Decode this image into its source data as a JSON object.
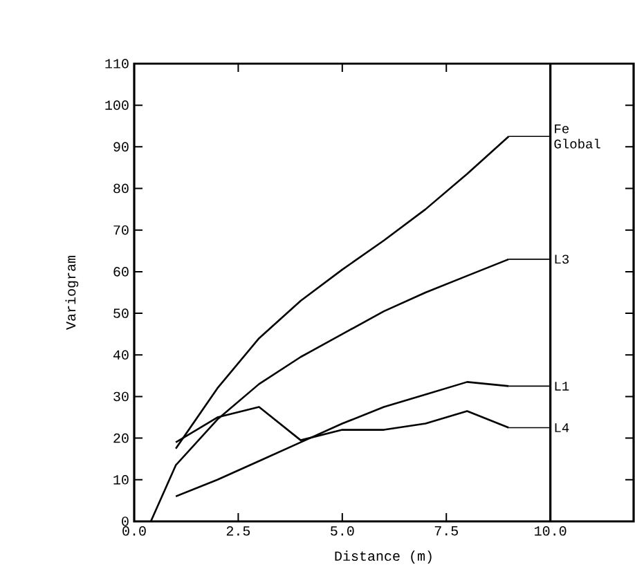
{
  "chart_data": {
    "type": "line",
    "xlabel": "Distance (m)",
    "ylabel": "Variogram",
    "x": [
      1,
      2,
      3,
      4,
      5,
      6,
      7,
      8,
      9
    ],
    "series": [
      {
        "name": "Fe Global",
        "color": "#000000",
        "values": [
          17.5,
          32,
          44,
          53,
          60.5,
          67.5,
          75,
          83.5,
          92.5
        ]
      },
      {
        "name": "L3",
        "color": "#000000",
        "x": [
          0.4,
          1,
          2,
          3,
          4,
          5,
          6,
          7,
          8,
          9
        ],
        "values": [
          0,
          13.5,
          24.5,
          33,
          39.5,
          45,
          50.5,
          55,
          59,
          63
        ]
      },
      {
        "name": "L1",
        "color": "#000000",
        "values": [
          6,
          10,
          14.5,
          19,
          23.5,
          27.5,
          30.5,
          33.5,
          32.5
        ]
      },
      {
        "name": "L4",
        "color": "#000000",
        "values": [
          19,
          25,
          27.5,
          19.5,
          22,
          22,
          23.5,
          26.5,
          22.5
        ]
      }
    ],
    "xlim": [
      0,
      12
    ],
    "ylim": [
      0,
      110
    ],
    "xticks": [
      {
        "value": 0,
        "label": "0.0"
      },
      {
        "value": 2.5,
        "label": "2.5"
      },
      {
        "value": 5,
        "label": "5.0"
      },
      {
        "value": 7.5,
        "label": "7.5"
      },
      {
        "value": 10,
        "label": "10.0"
      }
    ],
    "yticks": [
      0,
      10,
      20,
      30,
      40,
      50,
      60,
      70,
      80,
      90,
      100,
      110
    ],
    "ref_lines": [
      {
        "axis": "x",
        "value": 10,
        "color": "#000000"
      }
    ],
    "grid": false,
    "legend": "right",
    "marker": "none",
    "line_style": "solid"
  }
}
